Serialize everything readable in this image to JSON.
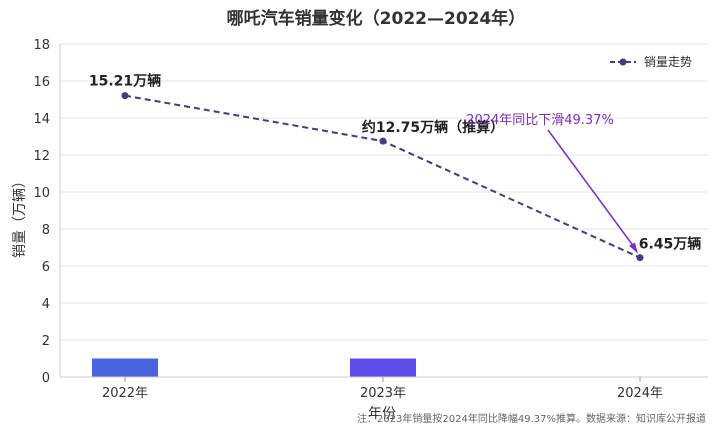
{
  "chart_data": {
    "type": "line",
    "title": "哪吒汽车销量变化（2022—2024年）",
    "xlabel": "年份",
    "ylabel": "销量（万辆）",
    "ylim": [
      0,
      18
    ],
    "yticks": [
      0,
      2,
      4,
      6,
      8,
      10,
      12,
      14,
      16,
      18
    ],
    "categories": [
      "2022年",
      "2023年",
      "2024年"
    ],
    "series": [
      {
        "name": "销量走势",
        "values": [
          15.21,
          12.75,
          6.45
        ],
        "color": "#3d3f7e"
      }
    ],
    "bars": [
      {
        "category": "2022年",
        "value": 1,
        "color": "#4a64e0"
      },
      {
        "category": "2023年",
        "value": 1,
        "color": "#5b4ee8"
      }
    ],
    "data_labels": [
      "15.21万辆",
      "约12.75万辆（推算）",
      "6.45万辆"
    ],
    "annotation": {
      "text": "2024年同比下滑49.37%",
      "color": "#7b2fbe",
      "target_category": "2024年",
      "target_value": 6.45
    },
    "grid": true,
    "legend_position": "top-right",
    "footnote": "注：2023年销量按2024年同比降幅49.37%推算。数据来源：知识库公开报道"
  }
}
